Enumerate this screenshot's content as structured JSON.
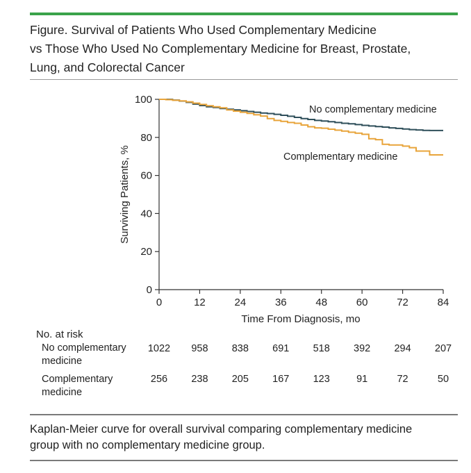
{
  "figure": {
    "title_lines": [
      "Figure. Survival of Patients Who Used Complementary Medicine",
      "vs Those Who Used No Complementary Medicine for Breast, Prostate,",
      "Lung, and Colorectal Cancer"
    ],
    "caption_lines": [
      "Kaplan-Meier curve for overall survival comparing complementary medicine",
      "group with no complementary medicine group."
    ]
  },
  "chart_data": {
    "type": "line",
    "xlabel": "Time From Diagnosis, mo",
    "ylabel": "Surviving Patients, %",
    "xlim": [
      0,
      84
    ],
    "ylim": [
      0,
      100
    ],
    "x_ticks": [
      0,
      12,
      24,
      36,
      48,
      60,
      72,
      84
    ],
    "y_ticks": [
      0,
      20,
      40,
      60,
      80,
      100
    ],
    "grid": false,
    "series": [
      {
        "name": "No complementary medicine",
        "color": "#2f4f5a",
        "step": true,
        "points": [
          [
            0,
            100
          ],
          [
            2,
            100
          ],
          [
            4,
            99.6
          ],
          [
            6,
            99.1
          ],
          [
            8,
            98.4
          ],
          [
            10,
            97.5
          ],
          [
            12,
            96.7
          ],
          [
            14,
            96.1
          ],
          [
            16,
            95.7
          ],
          [
            18,
            95.2
          ],
          [
            20,
            94.8
          ],
          [
            22,
            94.4
          ],
          [
            24,
            94
          ],
          [
            26,
            93.6
          ],
          [
            28,
            93.2
          ],
          [
            30,
            92.8
          ],
          [
            32,
            92.5
          ],
          [
            34,
            92.1
          ],
          [
            36,
            91.6
          ],
          [
            38,
            91.1
          ],
          [
            40,
            90.5
          ],
          [
            42,
            89.9
          ],
          [
            44,
            89.4
          ],
          [
            46,
            88.9
          ],
          [
            48,
            88.6
          ],
          [
            50,
            88.2
          ],
          [
            52,
            87.8
          ],
          [
            54,
            87.4
          ],
          [
            56,
            87.1
          ],
          [
            58,
            86.7
          ],
          [
            60,
            86.3
          ],
          [
            62,
            86
          ],
          [
            64,
            85.7
          ],
          [
            66,
            85.4
          ],
          [
            68,
            85
          ],
          [
            70,
            84.7
          ],
          [
            72,
            84.4
          ],
          [
            74,
            84.1
          ],
          [
            76,
            83.9
          ],
          [
            78,
            83.7
          ],
          [
            80,
            83.6
          ],
          [
            84,
            83.6
          ]
        ]
      },
      {
        "name": "Complementary medicine",
        "color": "#e8a43a",
        "step": true,
        "points": [
          [
            0,
            100
          ],
          [
            2,
            99.8
          ],
          [
            4,
            99.5
          ],
          [
            6,
            99.2
          ],
          [
            8,
            98.7
          ],
          [
            10,
            98
          ],
          [
            12,
            97.3
          ],
          [
            14,
            96.6
          ],
          [
            16,
            96.1
          ],
          [
            18,
            95.5
          ],
          [
            20,
            94.4
          ],
          [
            22,
            93.8
          ],
          [
            24,
            93.2
          ],
          [
            26,
            92.6
          ],
          [
            28,
            91.9
          ],
          [
            30,
            91.2
          ],
          [
            32,
            89.9
          ],
          [
            34,
            88.9
          ],
          [
            36,
            88.4
          ],
          [
            38,
            87.8
          ],
          [
            40,
            87.4
          ],
          [
            42,
            86.5
          ],
          [
            44,
            85.6
          ],
          [
            46,
            85
          ],
          [
            48,
            84.8
          ],
          [
            50,
            84.3
          ],
          [
            52,
            83.8
          ],
          [
            54,
            83.3
          ],
          [
            56,
            82.7
          ],
          [
            58,
            82.2
          ],
          [
            60,
            81.6
          ],
          [
            62,
            79.3
          ],
          [
            64,
            78.8
          ],
          [
            66,
            76.4
          ],
          [
            68,
            76
          ],
          [
            70,
            76
          ],
          [
            72,
            75.4
          ],
          [
            74,
            74.6
          ],
          [
            76,
            72.8
          ],
          [
            78,
            72.8
          ],
          [
            80,
            70.8
          ],
          [
            84,
            70.8
          ]
        ]
      }
    ],
    "series_labels": [
      "No complementary medicine",
      "Complementary medicine"
    ],
    "risk_table": {
      "header": "No. at risk",
      "rows": [
        {
          "label_lines": [
            "No complementary",
            "medicine"
          ],
          "values": [
            1022,
            958,
            838,
            691,
            518,
            392,
            294,
            207
          ]
        },
        {
          "label_lines": [
            "Complementary",
            "medicine"
          ],
          "values": [
            256,
            238,
            205,
            167,
            123,
            91,
            72,
            50
          ]
        }
      ]
    }
  }
}
